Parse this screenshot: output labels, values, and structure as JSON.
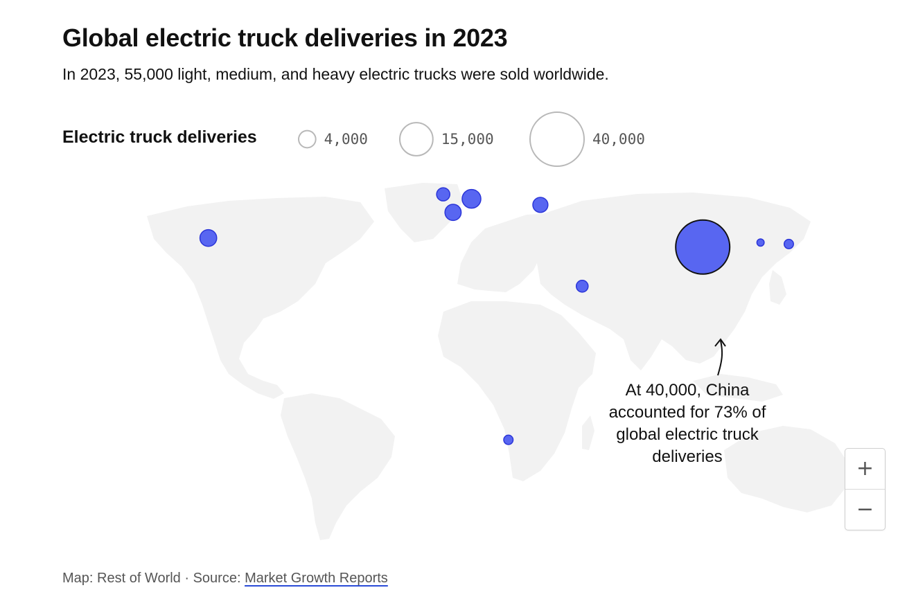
{
  "header": {
    "title": "Global electric truck deliveries in 2023",
    "subtitle": "In 2023, 55,000 light, medium, and heavy electric trucks were sold worldwide."
  },
  "legend": {
    "label": "Electric truck deliveries",
    "items": [
      {
        "value": 4000,
        "label": "4,000"
      },
      {
        "value": 15000,
        "label": "15,000"
      },
      {
        "value": 40000,
        "label": "40,000"
      }
    ]
  },
  "map_data": {
    "type": "proportional-symbol-map",
    "bubble_color": "#4f5ef0",
    "bubble_stroke": "#2b35d8",
    "land_color": "#f2f2f2",
    "points": [
      {
        "region": "United States",
        "lon": -97,
        "lat": 38,
        "value": 1600
      },
      {
        "region": "United Kingdom",
        "lon": -1.5,
        "lat": 52.5,
        "value": 1000
      },
      {
        "region": "Germany",
        "lon": 10,
        "lat": 51,
        "value": 2000
      },
      {
        "region": "France",
        "lon": 2.5,
        "lat": 46.5,
        "value": 1500
      },
      {
        "region": "Russia/Ukraine region",
        "lon": 38,
        "lat": 49,
        "value": 1300
      },
      {
        "region": "China",
        "lon": 104,
        "lat": 35,
        "value": 40000,
        "highlight": true
      },
      {
        "region": "South Korea",
        "lon": 127.5,
        "lat": 36.5,
        "value": 300
      },
      {
        "region": "Japan",
        "lon": 139,
        "lat": 36,
        "value": 500
      },
      {
        "region": "UAE/Oman",
        "lon": 55,
        "lat": 22,
        "value": 800
      },
      {
        "region": "South Africa",
        "lon": 25,
        "lat": -29,
        "value": 500
      }
    ]
  },
  "annotation": {
    "lines": [
      "At 40,000, China",
      "accounted for 73% of",
      "global electric truck",
      "deliveries"
    ]
  },
  "zoom": {
    "in_label": "+",
    "out_label": "−"
  },
  "footer": {
    "prefix": "Map: Rest of World · Source: ",
    "source_link": "Market Growth Reports"
  }
}
